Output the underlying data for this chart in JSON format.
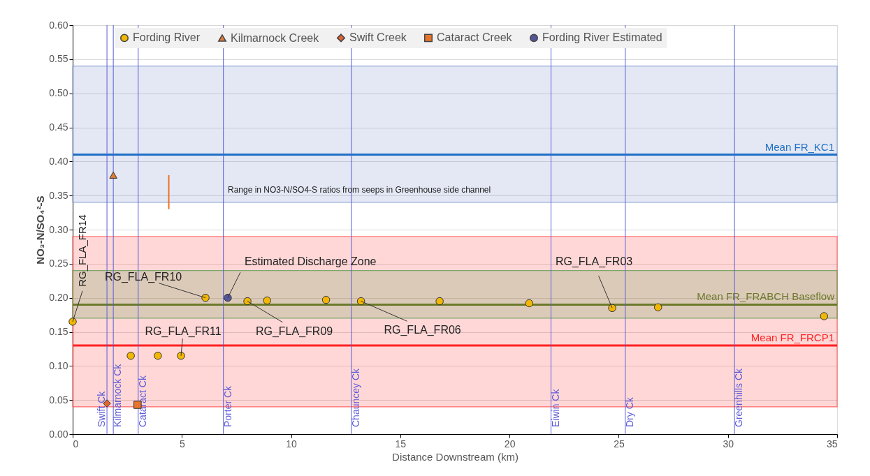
{
  "chart_data": {
    "type": "scatter",
    "xlabel": "Distance Downstream (km)",
    "ylabel": "NO₃-N/SO₄²-S",
    "xlim": [
      0,
      35
    ],
    "xticks": [
      0,
      5,
      10,
      15,
      20,
      25,
      30,
      35
    ],
    "ylim": [
      0,
      0.6
    ],
    "yticks": [
      {
        "value": 0,
        "label": "0.00"
      },
      0.05,
      {
        "value": 0.1,
        "label": "0.10"
      },
      0.15,
      {
        "value": 0.2,
        "label": "0.20"
      },
      0.25,
      {
        "value": 0.3,
        "label": "0.30"
      },
      0.35,
      {
        "value": 0.4,
        "label": "0.40"
      },
      0.45,
      {
        "value": 0.5,
        "label": "0.50"
      },
      0.55,
      {
        "value": 0.6,
        "label": "0.60"
      }
    ],
    "grid": "y",
    "legend": "top",
    "series": [
      {
        "name": "Fording River",
        "color": "#f2b705",
        "marker": "circle",
        "x": [
          0,
          2.66,
          3.9,
          4.96,
          6.08,
          8.0,
          8.9,
          11.6,
          13.2,
          16.8,
          20.9,
          24.7,
          26.8,
          34.4
        ],
        "values": [
          0.165,
          0.115,
          0.115,
          0.115,
          0.2,
          0.195,
          0.196,
          0.197,
          0.195,
          0.195,
          0.192,
          0.185,
          0.186,
          0.173
        ]
      },
      {
        "name": "Kilmarnock Creek",
        "color": "#e07b39",
        "marker": "triangle",
        "x": [
          1.86
        ],
        "values": [
          0.38
        ]
      },
      {
        "name": "Swift Creek",
        "color": "#e0642e",
        "marker": "diamond",
        "x": [
          1.57
        ],
        "values": [
          0.045
        ]
      },
      {
        "name": "Cataract Creek",
        "color": "#e8742a",
        "marker": "square",
        "x": [
          2.97
        ],
        "values": [
          0.043
        ]
      },
      {
        "name": "Fording River Estimated",
        "color": "#55559a",
        "marker": "circle",
        "x": [
          7.1
        ],
        "values": [
          0.2
        ]
      },
      {
        "type": "line",
        "color": "#f07020",
        "marker": "none",
        "x": [
          4.4,
          4.4
        ],
        "values": [
          0.33,
          0.38
        ]
      }
    ],
    "bands": [
      {
        "axis": "y",
        "from": 0.34,
        "to": 0.54,
        "color": "#8096cc"
      },
      {
        "axis": "y",
        "from": 0.04,
        "to": 0.29,
        "color": "#ff4a4a"
      },
      {
        "axis": "y",
        "from": 0.17,
        "to": 0.24,
        "color": "#5f9e50"
      }
    ],
    "ref_lines": [
      {
        "axis": "y",
        "value": 0.41,
        "label": "Mean FR_KC1",
        "color": "#1f6fc5"
      },
      {
        "axis": "y",
        "value": 0.19,
        "label": "Mean FR_FRABCH Baseflow",
        "color": "#6b7a2a"
      },
      {
        "axis": "y",
        "value": 0.13,
        "label": "Mean FR_FRCP1",
        "color": "#ff2020"
      },
      {
        "axis": "x",
        "value": 1.57,
        "label": "Swift Ck",
        "color": "#5a5ad8"
      },
      {
        "axis": "x",
        "value": 1.86,
        "label": "Kilmarnock Ck",
        "color": "#5a5ad8"
      },
      {
        "axis": "x",
        "value": 3.0,
        "label": "Cataract Ck",
        "color": "#5a5ad8"
      },
      {
        "axis": "x",
        "value": 6.9,
        "label": "Porter Ck",
        "color": "#5a5ad8"
      },
      {
        "axis": "x",
        "value": 12.76,
        "label": "Chauncey Ck",
        "color": "#5a5ad8"
      },
      {
        "axis": "x",
        "value": 21.9,
        "label": "Eiwin Ck",
        "color": "#5a5ad8"
      },
      {
        "axis": "x",
        "value": 25.3,
        "label": "Dry Ck",
        "color": "#5a5ad8"
      },
      {
        "axis": "x",
        "value": 30.3,
        "label": "Greenhills Ck",
        "color": "#5a5ad8"
      }
    ],
    "annotations": [
      {
        "text": "RG_FLA_FR14",
        "x": 0,
        "y": 0.165
      },
      {
        "text": "RG_FLA_FR10",
        "x": 6.08,
        "y": 0.2
      },
      {
        "text": "Estimated Discharge Zone",
        "x": 7.1,
        "y": 0.2
      },
      {
        "text": "RG_FLA_FR11",
        "x": 4.96,
        "y": 0.115
      },
      {
        "text": "RG_FLA_FR09",
        "x": 8.0,
        "y": 0.195
      },
      {
        "text": "RG_FLA_FR06",
        "x": 13.2,
        "y": 0.195
      },
      {
        "text": "RG_FLA_FR03",
        "x": 24.7,
        "y": 0.185
      },
      "Range in NO3-N/SO4-S ratios from seeps in Greenhouse side channel"
    ]
  }
}
